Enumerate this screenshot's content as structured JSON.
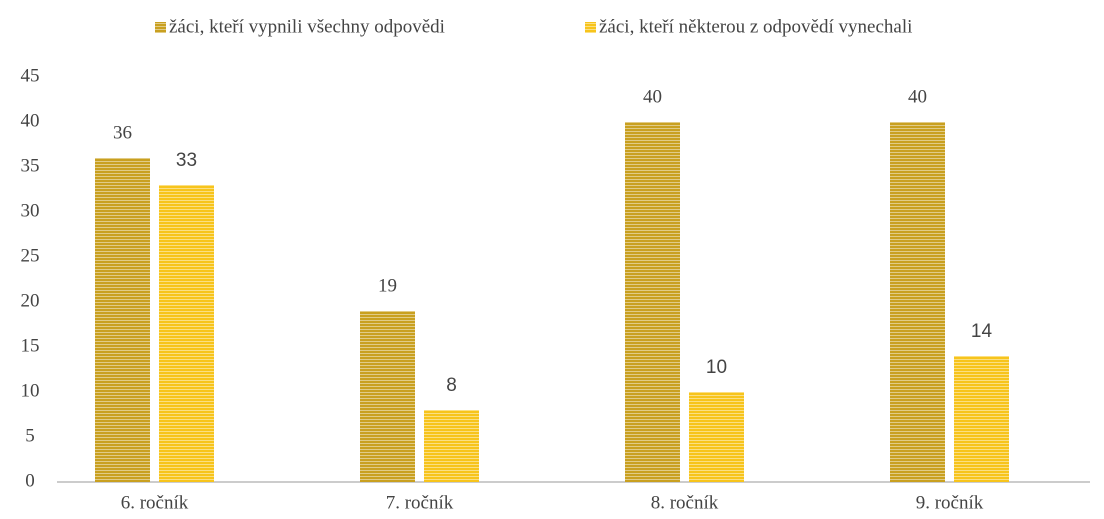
{
  "chart_data": {
    "type": "bar",
    "categories": [
      "6. ročník",
      "7. ročník",
      "8. ročník",
      "9. ročník"
    ],
    "series": [
      {
        "name": "žáci, kteří vypnili všechny odpovědi",
        "color": "#c9a020",
        "values": [
          36,
          19,
          40,
          40
        ]
      },
      {
        "name": "žáci, kteří některou z odpovědí vynechali",
        "color": "#f7c41c",
        "values": [
          33,
          8,
          10,
          14
        ]
      }
    ],
    "ylim": [
      0,
      45
    ],
    "yticks": [
      0,
      5,
      10,
      15,
      20,
      25,
      30,
      35,
      40,
      45
    ],
    "legend": "top"
  }
}
